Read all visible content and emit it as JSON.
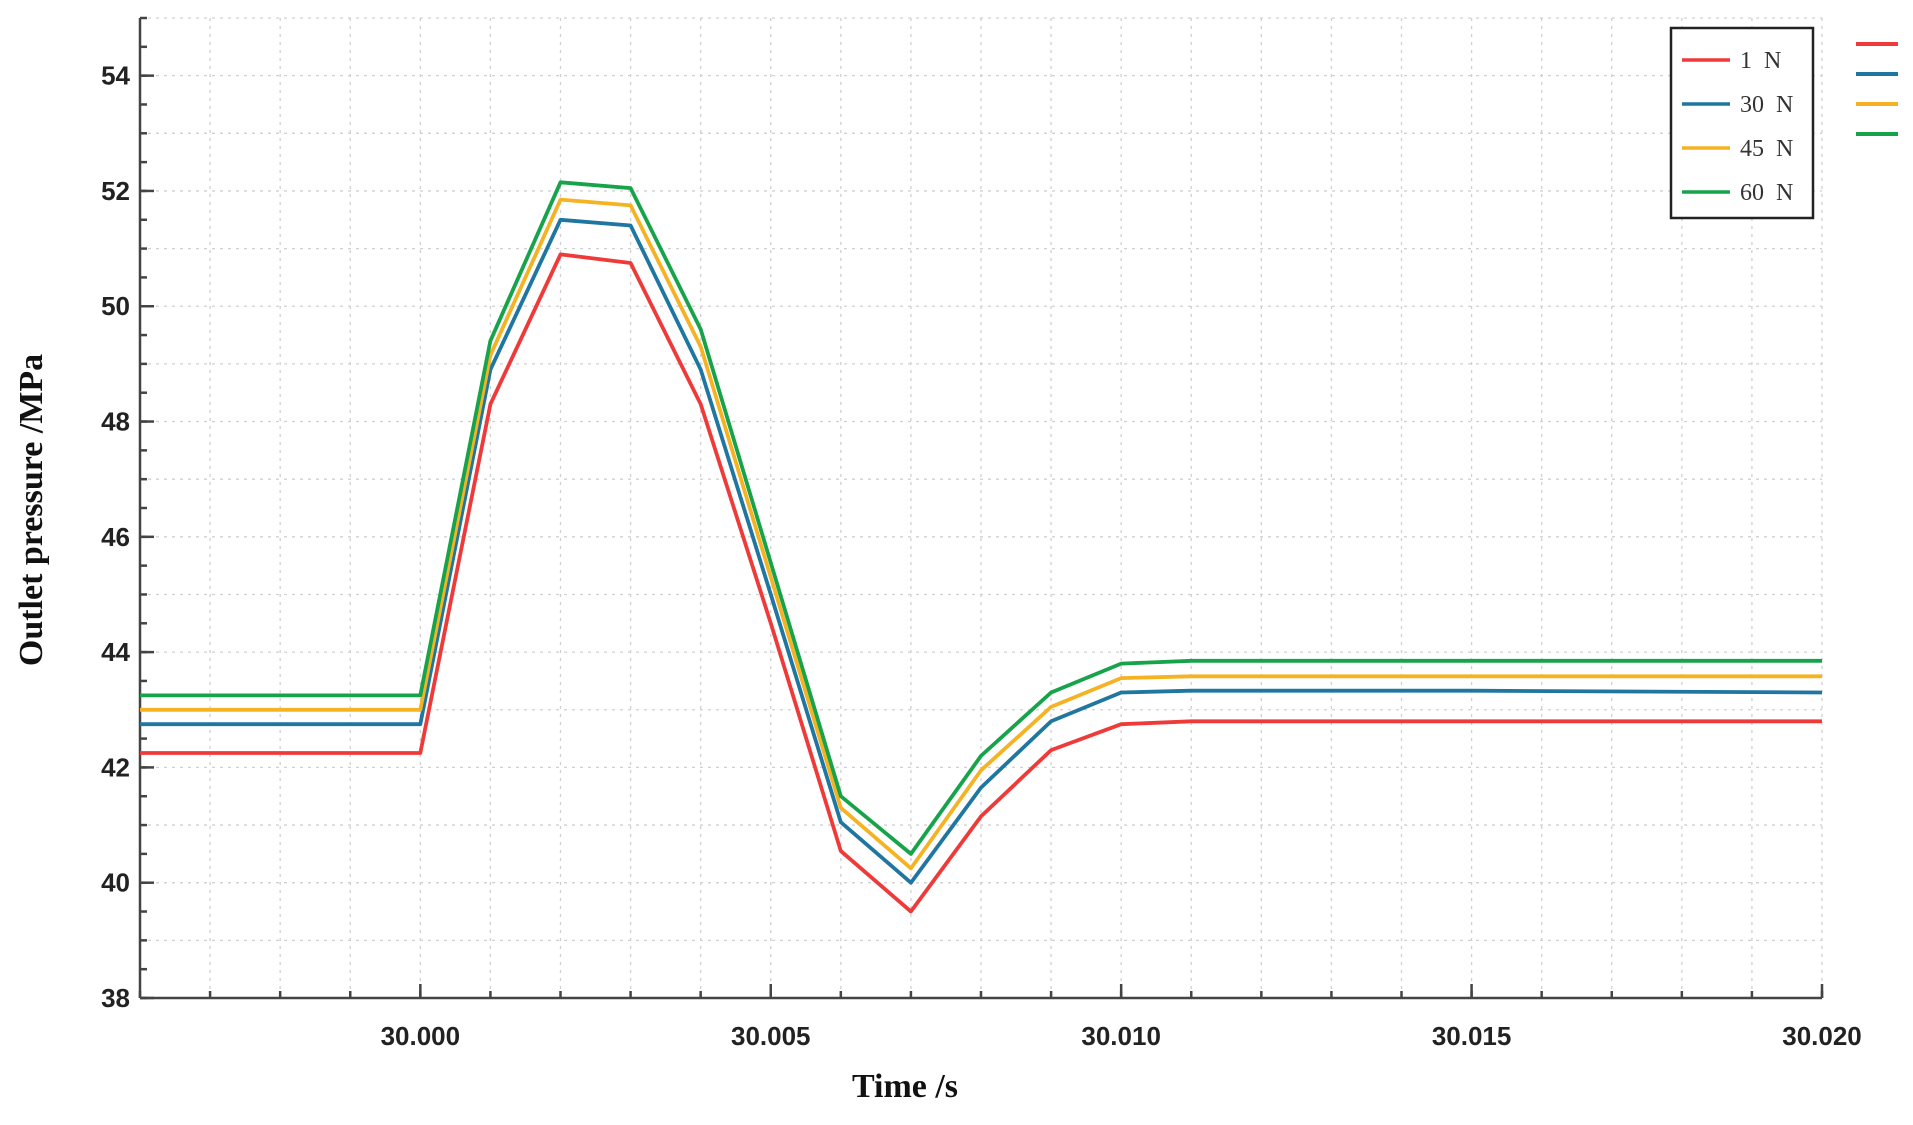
{
  "chart_data": {
    "type": "line",
    "xlabel": "Time /s",
    "ylabel": "Outlet pressure /MPa",
    "xlim": [
      29.996,
      30.02
    ],
    "ylim": [
      38,
      55
    ],
    "x_ticks": [
      "30.000",
      "30.005",
      "30.010",
      "30.015",
      "30.020"
    ],
    "x_tick_values": [
      30.0,
      30.005,
      30.01,
      30.015,
      30.02
    ],
    "y_ticks": [
      "38",
      "40",
      "42",
      "44",
      "46",
      "48",
      "50",
      "52",
      "54"
    ],
    "y_tick_values": [
      38,
      40,
      42,
      44,
      46,
      48,
      50,
      52,
      54
    ],
    "grid": true,
    "legend_position": "top-right",
    "x": [
      29.996,
      30.0,
      30.001,
      30.002,
      30.003,
      30.004,
      30.005,
      30.006,
      30.007,
      30.008,
      30.009,
      30.01,
      30.011,
      30.015,
      30.02
    ],
    "series": [
      {
        "name": "1  N",
        "color": "#ef3a3a",
        "values": [
          42.25,
          42.25,
          48.3,
          50.9,
          50.75,
          48.3,
          44.5,
          40.55,
          39.5,
          41.15,
          42.3,
          42.75,
          42.8,
          42.8,
          42.8
        ]
      },
      {
        "name": "30  N",
        "color": "#1f76a0",
        "values": [
          42.75,
          42.75,
          48.9,
          51.5,
          51.4,
          48.9,
          45.0,
          41.05,
          40.0,
          41.65,
          42.8,
          43.3,
          43.33,
          43.33,
          43.3
        ]
      },
      {
        "name": "45  N",
        "color": "#f5b324",
        "values": [
          43.0,
          43.0,
          49.15,
          51.85,
          51.75,
          49.3,
          45.3,
          41.3,
          40.25,
          41.95,
          43.05,
          43.55,
          43.58,
          43.58,
          43.58
        ]
      },
      {
        "name": "60  N",
        "color": "#16a34a",
        "values": [
          43.25,
          43.25,
          49.4,
          52.15,
          52.05,
          49.6,
          45.55,
          41.5,
          40.5,
          42.2,
          43.3,
          43.8,
          43.85,
          43.85,
          43.85
        ]
      }
    ]
  }
}
